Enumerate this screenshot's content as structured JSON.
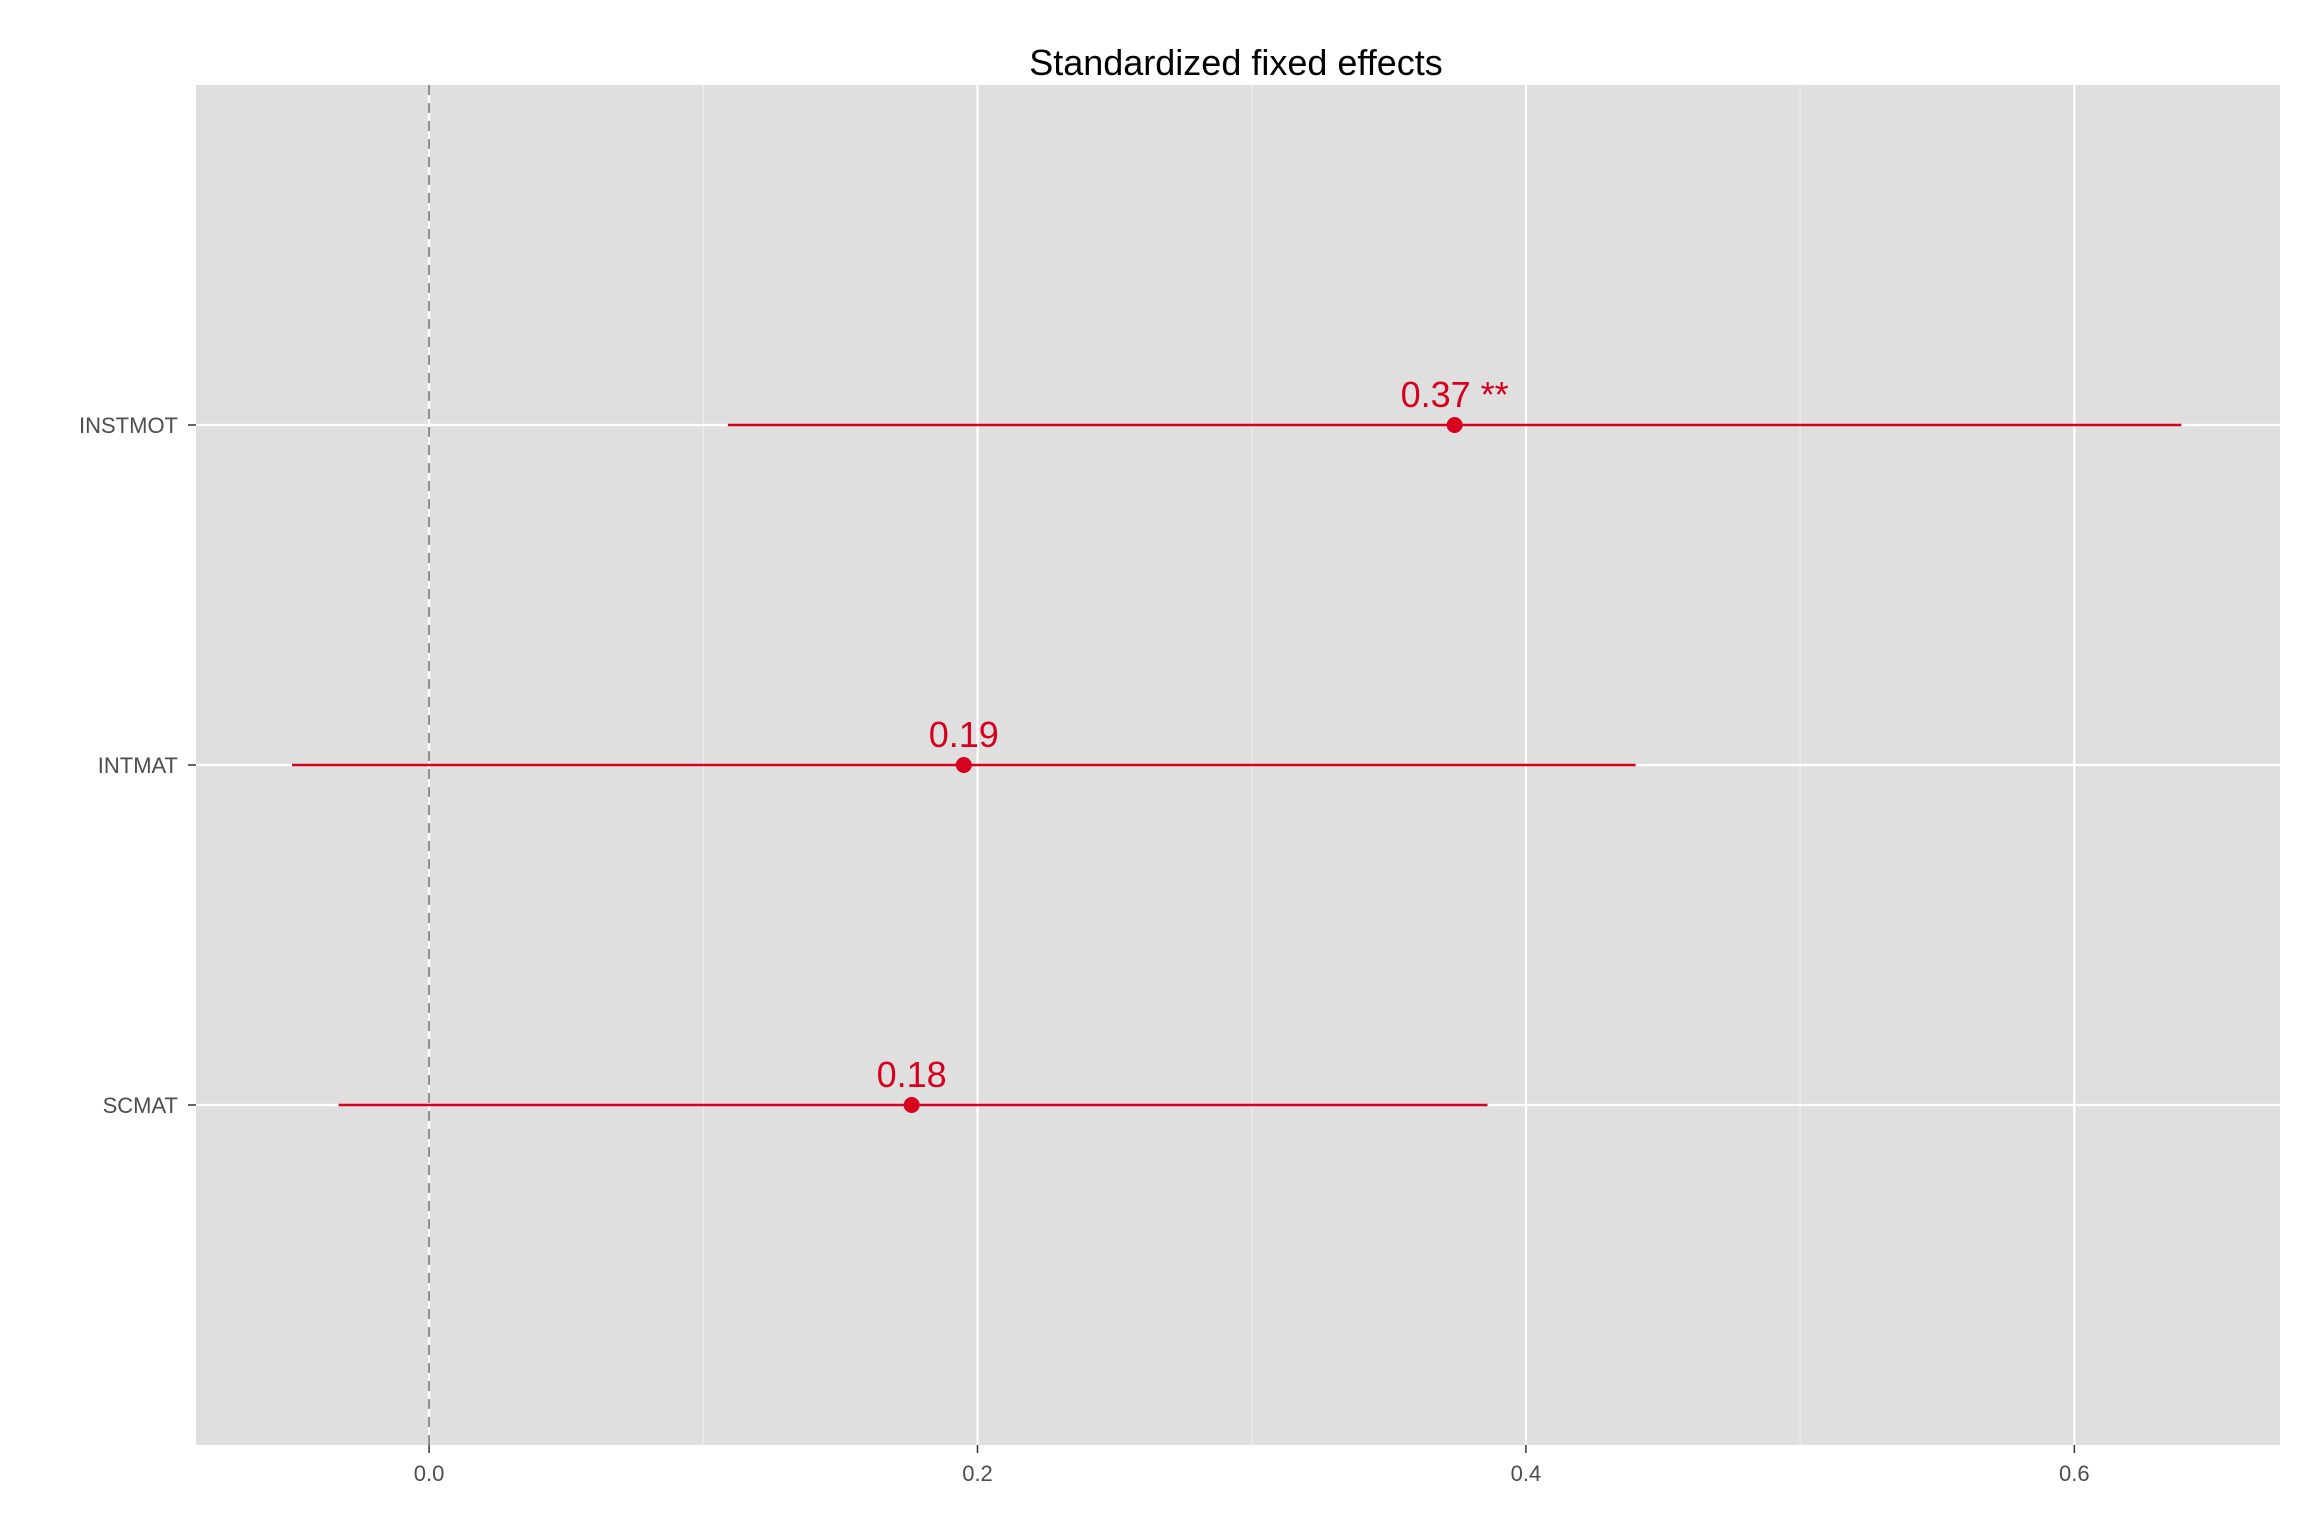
{
  "chart_data": {
    "type": "forest",
    "title": "Standardized fixed effects",
    "xlabel": "",
    "ylabel": "",
    "xlim": [
      -0.085,
      0.675
    ],
    "x_ticks": [
      0.0,
      0.2,
      0.4,
      0.6
    ],
    "x_tick_labels": [
      "0.0",
      "0.2",
      "0.4",
      "0.6"
    ],
    "reference_line": 0.0,
    "grid": true,
    "colors": {
      "panel_background": "#dfdfdf",
      "grid_major": "#ffffff",
      "grid_minor": "#eeeeee",
      "reference_line": "#8c8c8c",
      "series": "#d7001e"
    },
    "categories": [
      "INSTMOT",
      "INTMAT",
      "SCMAT"
    ],
    "estimates": [
      0.374,
      0.195,
      0.176
    ],
    "ci_low": [
      0.109,
      -0.05,
      -0.033
    ],
    "ci_high": [
      0.639,
      0.44,
      0.386
    ],
    "labels": [
      "0.37 **",
      "0.19",
      "0.18"
    ]
  }
}
